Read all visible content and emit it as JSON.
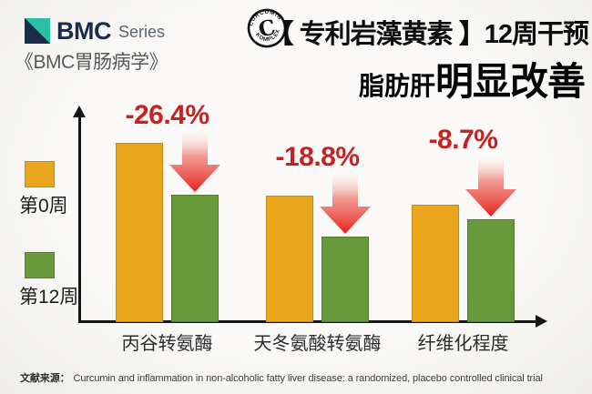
{
  "header": {
    "logo": {
      "brand": "BMC",
      "series": "Series",
      "journal": "《BMC胃肠病学》"
    },
    "badge": {
      "letter": "C",
      "ring_top": "CURCUMIN",
      "ring_bottom": "KOMPLEX"
    },
    "title_line1": "【 专利岩藻黄素 】12周干预",
    "title_line2_small": "脂肪肝",
    "title_line2_large": "明显改善"
  },
  "legend": {
    "week0": {
      "label": "第0周",
      "color": "#E9A51B"
    },
    "week12": {
      "label": "第12周",
      "color": "#68993B"
    }
  },
  "chart_data": {
    "type": "bar",
    "categories": [
      "丙谷转氨酶",
      "天冬氨酸转氨酶",
      "纤维化程度"
    ],
    "series": [
      {
        "name": "第0周",
        "color": "#E9A51B",
        "values": [
          197,
          139,
          129
        ]
      },
      {
        "name": "第12周",
        "color": "#68993B",
        "values": [
          140,
          94,
          113
        ]
      }
    ],
    "change_labels": [
      "-26.4%",
      "-18.8%",
      "-8.7%"
    ],
    "value_note": "axis unlabeled; values are displayed bar heights in px, baseline 0",
    "ylim": [
      0,
      226
    ],
    "grid": false,
    "legend_position": "left",
    "annotation_style": "red downward gradient arrows above week-12 bars"
  },
  "colors": {
    "accent_red_text": "#C42322",
    "arrow_red": "#E8201C",
    "brand_navy": "#1B2B4B",
    "brand_teal": "#2BC0A4"
  },
  "footer": {
    "source_label": "文献来源：",
    "source_text": "Curcumin and inflammation in non-alcoholic fatty liver disease: a randomized, placebo controlled clinical trial"
  }
}
